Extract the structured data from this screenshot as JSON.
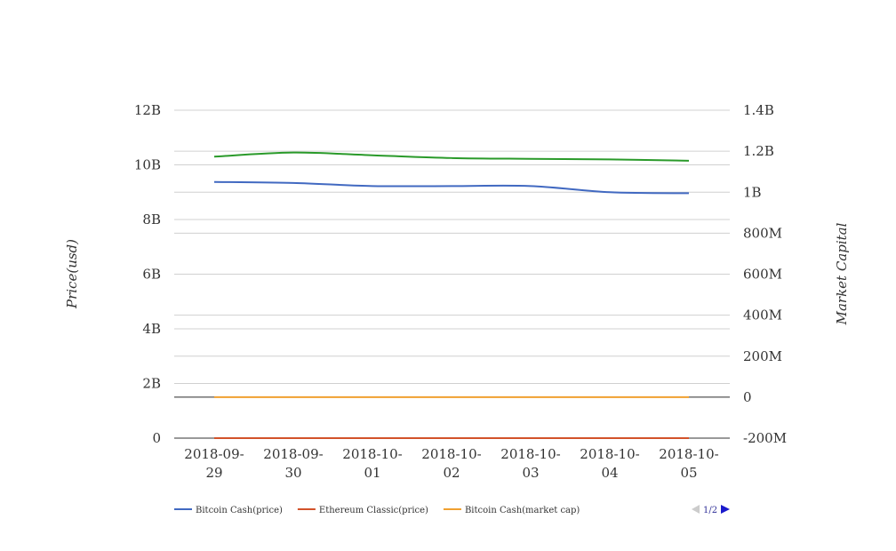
{
  "chart_data": {
    "type": "line",
    "categories": [
      "2018-09-29",
      "2018-09-30",
      "2018-10-01",
      "2018-10-02",
      "2018-10-03",
      "2018-10-04",
      "2018-10-05"
    ],
    "category_labels": [
      [
        "2018-09-",
        "29"
      ],
      [
        "2018-09-",
        "30"
      ],
      [
        "2018-10-",
        "01"
      ],
      [
        "2018-10-",
        "02"
      ],
      [
        "2018-10-",
        "03"
      ],
      [
        "2018-10-",
        "04"
      ],
      [
        "2018-10-",
        "05"
      ]
    ],
    "ylabel_left": "Price(usd)",
    "ylabel_right": "Market Capital",
    "left_axis": {
      "min": 0,
      "max": 12000000000,
      "ticks": [
        "0",
        "2B",
        "4B",
        "6B",
        "8B",
        "10B",
        "12B"
      ]
    },
    "right_axis": {
      "min": -200000000,
      "max": 1400000000,
      "ticks": [
        "-200M",
        "0",
        "200M",
        "400M",
        "600M",
        "800M",
        "1B",
        "1.2B",
        "1.4B"
      ]
    },
    "grid": true,
    "legend_position": "bottom-left",
    "series": [
      {
        "name": "Bitcoin Cash(price)",
        "axis": "right",
        "color": "#4169c1",
        "in_legend": true,
        "values": [
          1050000000,
          1045000000,
          1030000000,
          1030000000,
          1030000000,
          1000000000,
          995000000
        ]
      },
      {
        "name": "Ethereum Classic(price)",
        "axis": "left",
        "color": "#d2522a",
        "in_legend": true,
        "values": [
          0,
          0,
          0,
          0,
          0,
          0,
          0
        ]
      },
      {
        "name": "Bitcoin Cash(market cap)",
        "axis": "right",
        "color": "#f0a030",
        "in_legend": true,
        "values": [
          0,
          0,
          0,
          0,
          0,
          0,
          0
        ]
      },
      {
        "name": "",
        "axis": "left",
        "color": "#2a9a2a",
        "in_legend": false,
        "values": [
          10300000000,
          10450000000,
          10350000000,
          10250000000,
          10220000000,
          10200000000,
          10150000000
        ]
      }
    ]
  },
  "legend": {
    "page": "1/2"
  }
}
